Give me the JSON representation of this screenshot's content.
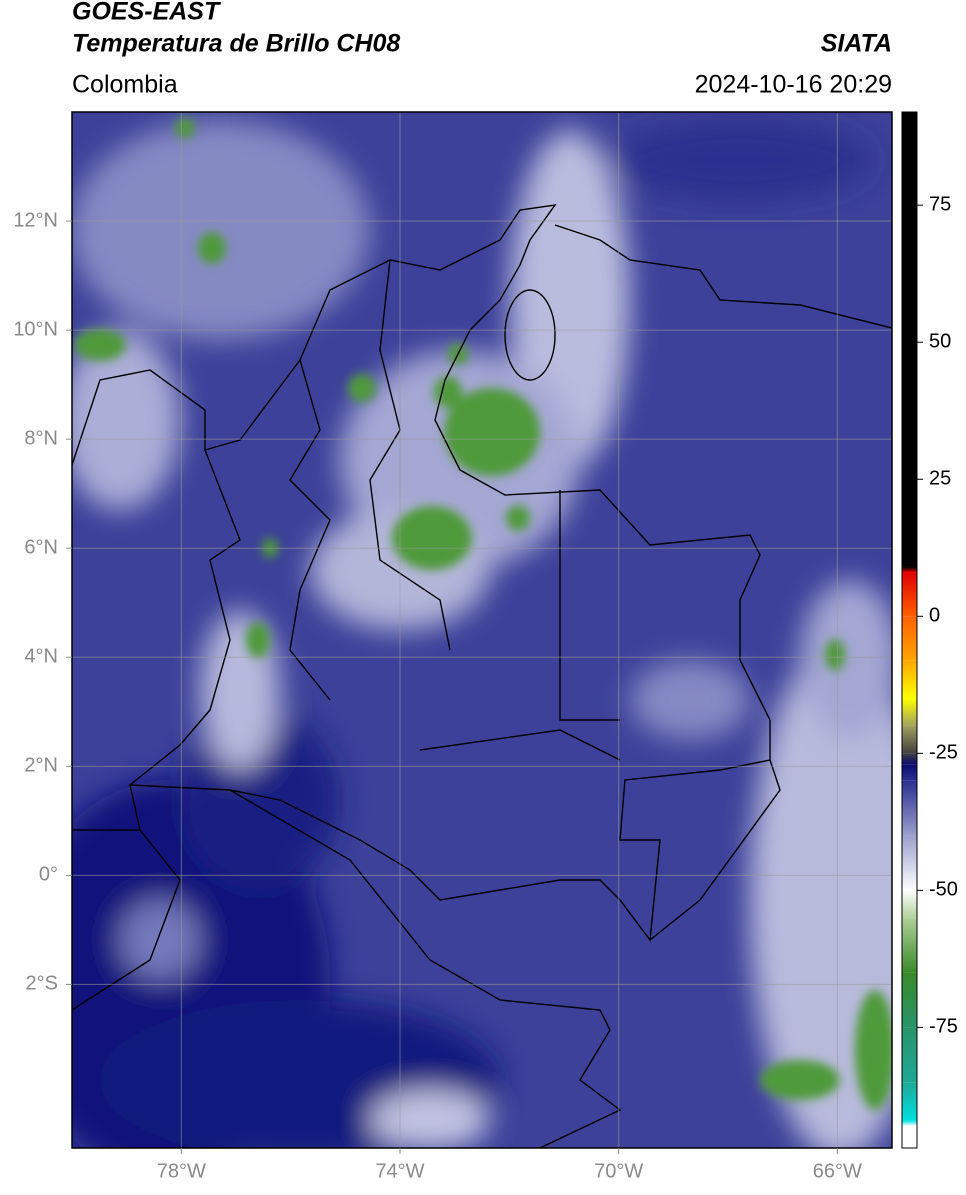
{
  "header": {
    "title": "GOES-EAST",
    "subtitle": "Temperatura de Brillo CH08",
    "region": "Colombia",
    "source": "SIATA",
    "datetime": "2024-10-16 20:29"
  },
  "map": {
    "xlim": [
      -80,
      -65
    ],
    "ylim": [
      -5,
      14
    ],
    "xticks": [
      {
        "value": -78,
        "label": "78°W"
      },
      {
        "value": -74,
        "label": "74°W"
      },
      {
        "value": -70,
        "label": "70°W"
      },
      {
        "value": -66,
        "label": "66°W"
      }
    ],
    "yticks": [
      {
        "value": 12,
        "label": "12°N"
      },
      {
        "value": 10,
        "label": "10°N"
      },
      {
        "value": 8,
        "label": "8°N"
      },
      {
        "value": 6,
        "label": "6°N"
      },
      {
        "value": 4,
        "label": "4°N"
      },
      {
        "value": 2,
        "label": "2°N"
      },
      {
        "value": 0,
        "label": "0°"
      },
      {
        "value": -2,
        "label": "2°S"
      }
    ],
    "grid": true
  },
  "colorbar": {
    "lim": [
      -97,
      92
    ],
    "ticks": [
      75,
      50,
      25,
      0,
      -25,
      -50,
      -75
    ],
    "stops": [
      {
        "value": -97,
        "color": "#ffffff"
      },
      {
        "value": -93,
        "color": "#ffffff"
      },
      {
        "value": -92,
        "color": "#00e0e0"
      },
      {
        "value": -85,
        "color": "#20a896"
      },
      {
        "value": -75,
        "color": "#28946a"
      },
      {
        "value": -65,
        "color": "#3a8a2a"
      },
      {
        "value": -55,
        "color": "#b0d09a"
      },
      {
        "value": -50,
        "color": "#ffffff"
      },
      {
        "value": -40,
        "color": "#9aa0cc"
      },
      {
        "value": -30,
        "color": "#2a3090"
      },
      {
        "value": -27,
        "color": "#0a0c70"
      },
      {
        "value": -25,
        "color": "#404040"
      },
      {
        "value": -20,
        "color": "#a0a060"
      },
      {
        "value": -15,
        "color": "#ffff00"
      },
      {
        "value": -8,
        "color": "#ffa500"
      },
      {
        "value": 0,
        "color": "#ff6000"
      },
      {
        "value": 8,
        "color": "#e00000"
      },
      {
        "value": 9,
        "color": "#000000"
      },
      {
        "value": 92,
        "color": "#000000"
      }
    ]
  }
}
